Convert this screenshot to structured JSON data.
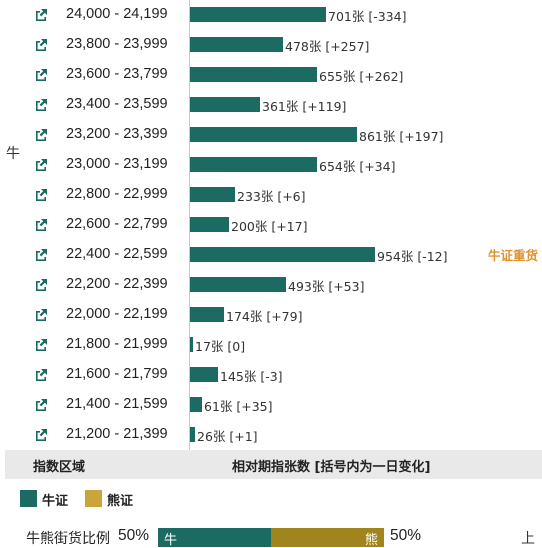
{
  "side_label": "牛",
  "annotation": "牛证重货",
  "rows": [
    {
      "range": "24,000 - 24,199",
      "count": 701,
      "change": "-334",
      "label": "701张 [-334]"
    },
    {
      "range": "23,800 - 23,999",
      "count": 478,
      "change": "+257",
      "label": "478张 [+257]"
    },
    {
      "range": "23,600 - 23,799",
      "count": 655,
      "change": "+262",
      "label": "655张 [+262]"
    },
    {
      "range": "23,400 - 23,599",
      "count": 361,
      "change": "+119",
      "label": "361张 [+119]"
    },
    {
      "range": "23,200 - 23,399",
      "count": 861,
      "change": "+197",
      "label": "861张 [+197]"
    },
    {
      "range": "23,000 - 23,199",
      "count": 654,
      "change": "+34",
      "label": "654张 [+34]"
    },
    {
      "range": "22,800 - 22,999",
      "count": 233,
      "change": "+6",
      "label": "233张 [+6]"
    },
    {
      "range": "22,600 - 22,799",
      "count": 200,
      "change": "+17",
      "label": "200张 [+17]"
    },
    {
      "range": "22,400 - 22,599",
      "count": 954,
      "change": "-12",
      "label": "954张 [-12]"
    },
    {
      "range": "22,200 - 22,399",
      "count": 493,
      "change": "+53",
      "label": "493张 [+53]"
    },
    {
      "range": "22,000 - 22,199",
      "count": 174,
      "change": "+79",
      "label": "174张 [+79]"
    },
    {
      "range": "21,800 - 21,999",
      "count": 17,
      "change": "0",
      "label": "17张 [0]"
    },
    {
      "range": "21,600 - 21,799",
      "count": 145,
      "change": "-3",
      "label": "145张 [-3]"
    },
    {
      "range": "21,400 - 21,599",
      "count": 61,
      "change": "+35",
      "label": "61张 [+35]"
    },
    {
      "range": "21,200 - 21,399",
      "count": 26,
      "change": "+1",
      "label": "26张 [+1]"
    }
  ],
  "footer": {
    "left": "指数区域",
    "mid": "相对期指张数 [括号内为一日变化]"
  },
  "legend": [
    {
      "name": "牛证",
      "color": "#1c6b62"
    },
    {
      "name": "熊证",
      "color": "#c9a53a"
    }
  ],
  "ratio": {
    "label": "牛熊街货比例",
    "bull_pct_text": "50%",
    "bear_pct_text": "50%",
    "bull_share": 0.5,
    "bull_text": "牛",
    "bear_text": "熊",
    "bull_color": "#1c6b62",
    "bear_color": "#a0841d",
    "extra": "上"
  },
  "colors": {
    "bar": "#1c6b62",
    "icon": "#1c6b62",
    "annotation": "#e0922f"
  }
}
